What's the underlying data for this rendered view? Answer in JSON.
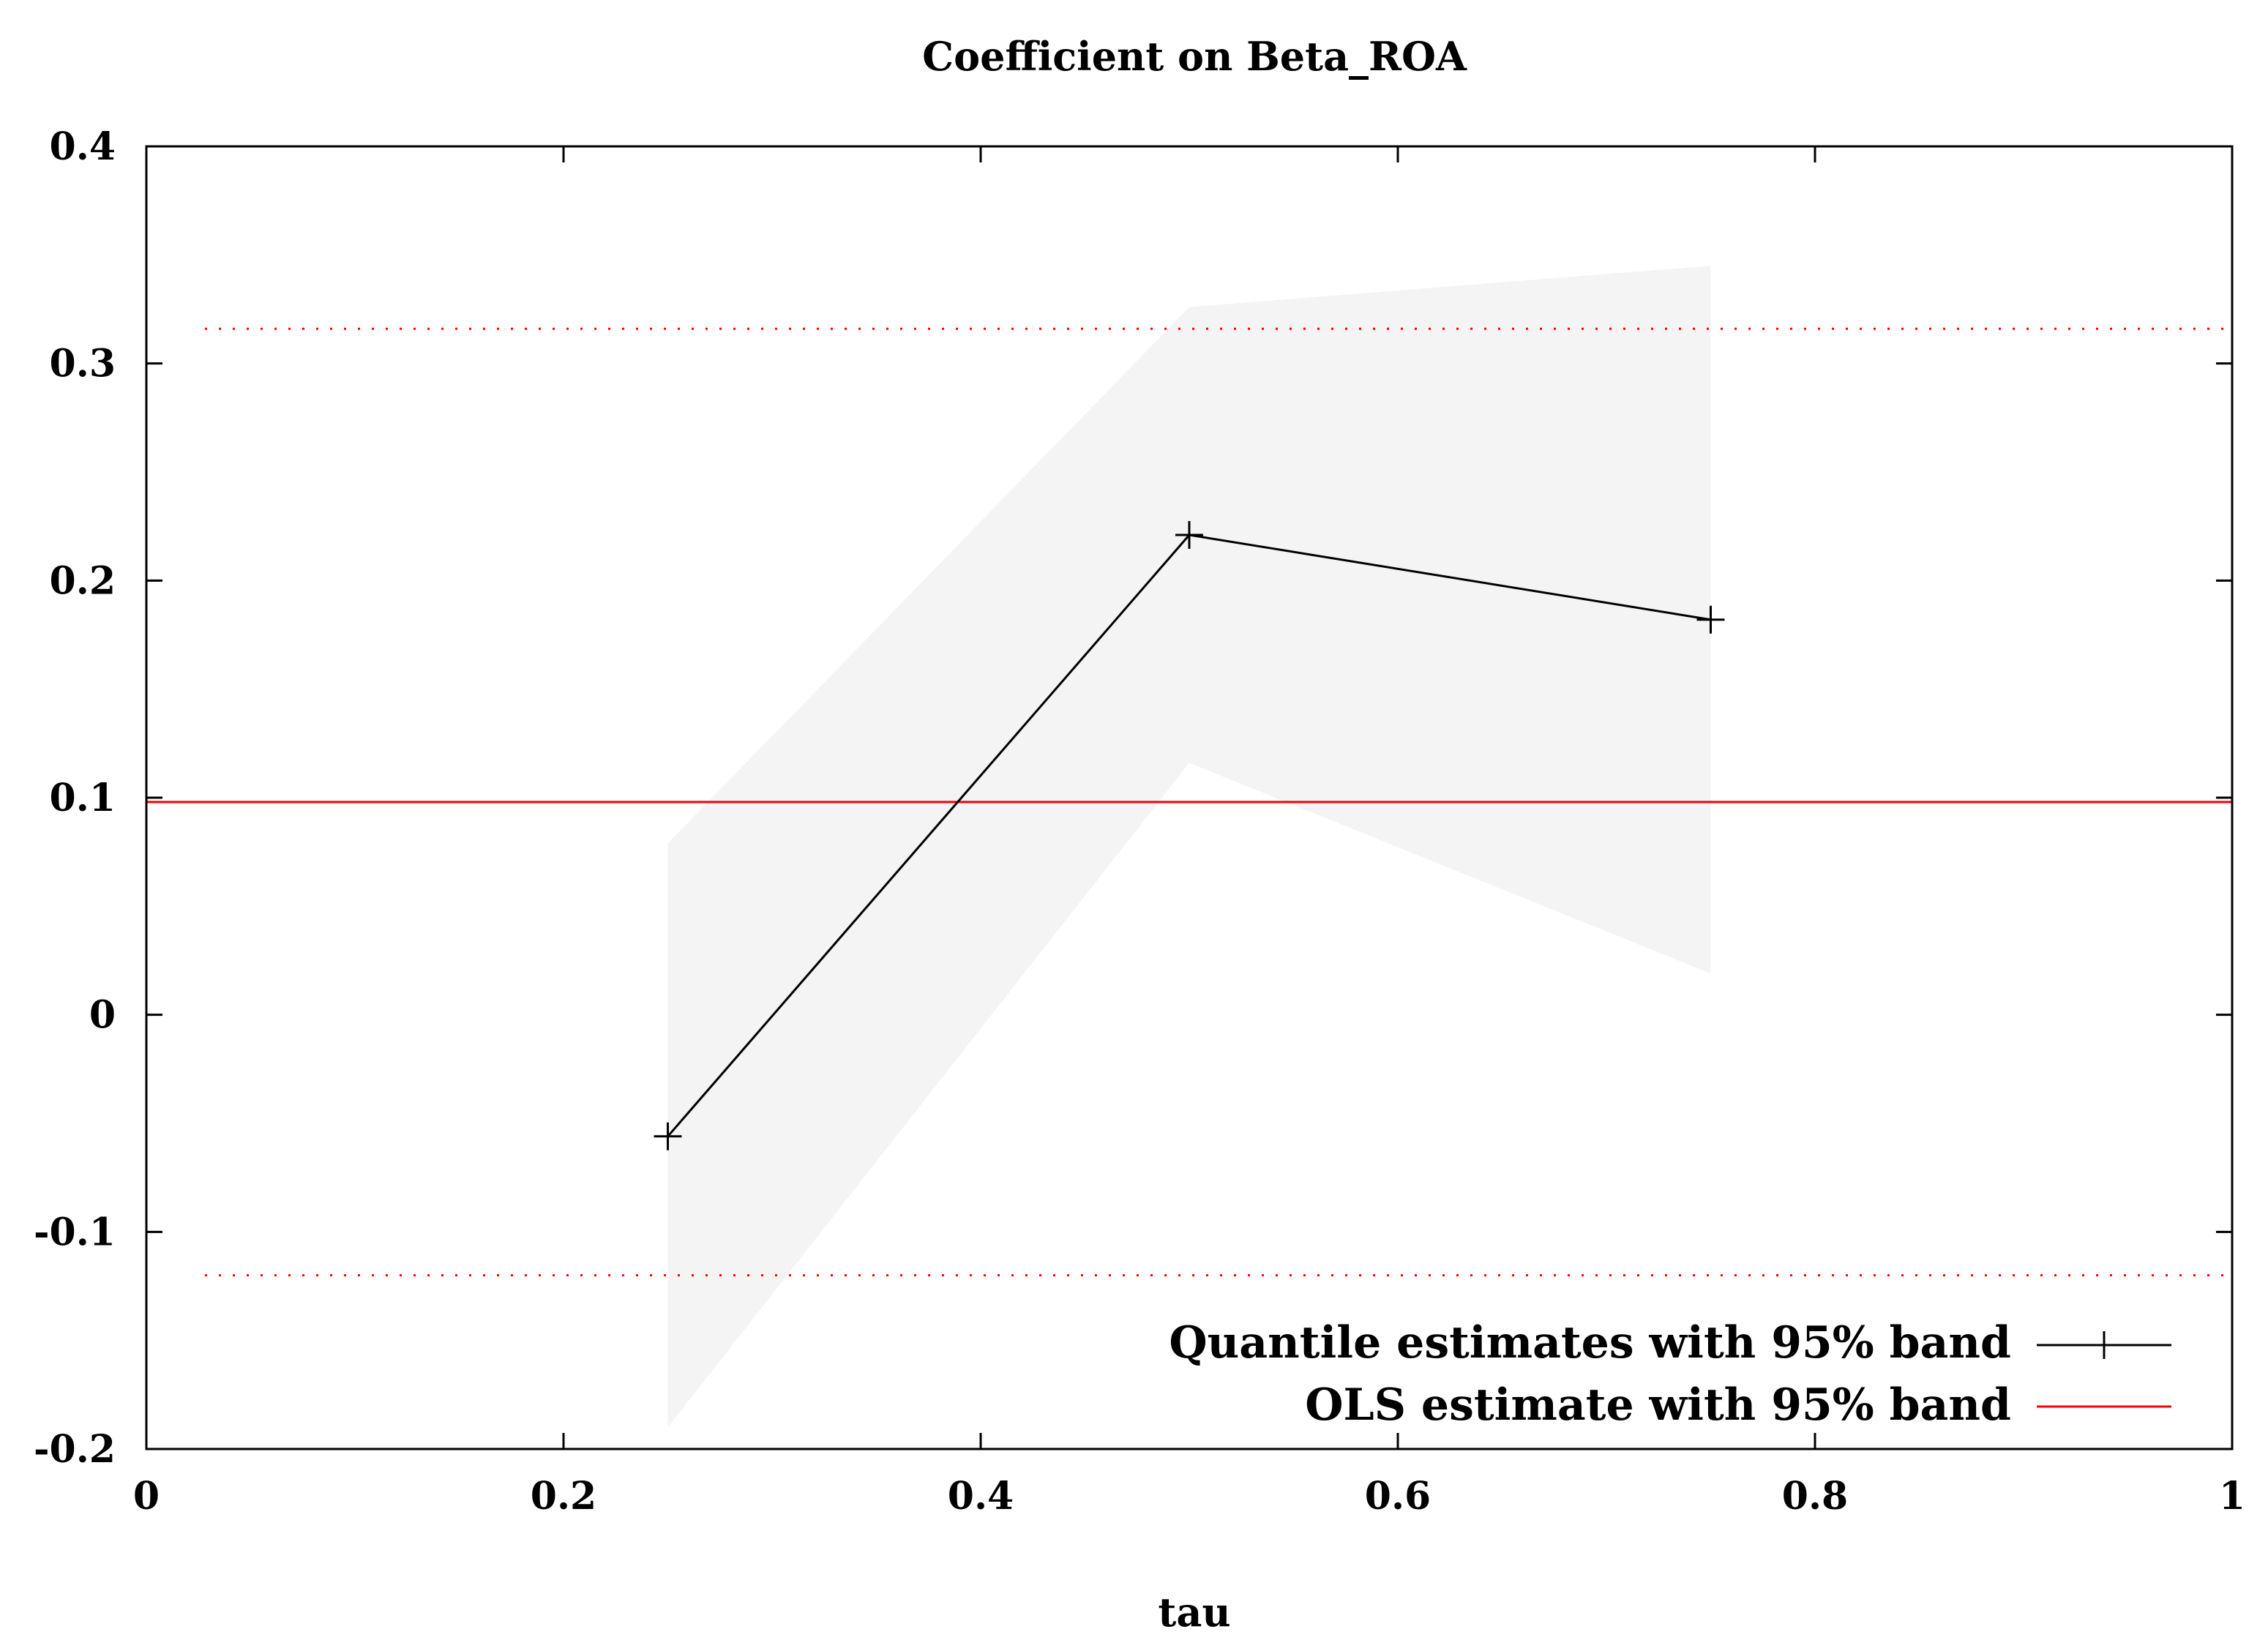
{
  "chart_data": {
    "type": "line",
    "title": "Coefficient on Beta_ROA",
    "xlabel": "tau",
    "ylabel": "",
    "xlim": [
      0,
      1
    ],
    "ylim": [
      -0.2,
      0.4
    ],
    "xticks": [
      0,
      0.2,
      0.4,
      0.6,
      0.8,
      1
    ],
    "xtick_labels": [
      "0",
      "0.2",
      "0.4",
      "0.6",
      "0.8",
      "1"
    ],
    "yticks": [
      -0.2,
      -0.1,
      0,
      0.1,
      0.2,
      0.3,
      0.4
    ],
    "ytick_labels": [
      "-0.2",
      "-0.1",
      "0",
      "0.1",
      "0.2",
      "0.3",
      "0.4"
    ],
    "grid": false,
    "legend_position": "bottom-right",
    "series": [
      {
        "name": "Quantile estimates with 95% band",
        "x": [
          0.25,
          0.5,
          0.75
        ],
        "y": [
          -0.056,
          0.221,
          0.182
        ],
        "band_lower": [
          -0.19,
          0.116,
          0.019
        ],
        "band_upper": [
          0.079,
          0.326,
          0.345
        ],
        "color": "#000000",
        "band_color": "#f4f4f4",
        "marker": "plus"
      },
      {
        "name": "OLS estimate with 95% band",
        "value": 0.098,
        "band_lower": -0.12,
        "band_upper": 0.316,
        "color": "#ff0000"
      }
    ]
  }
}
